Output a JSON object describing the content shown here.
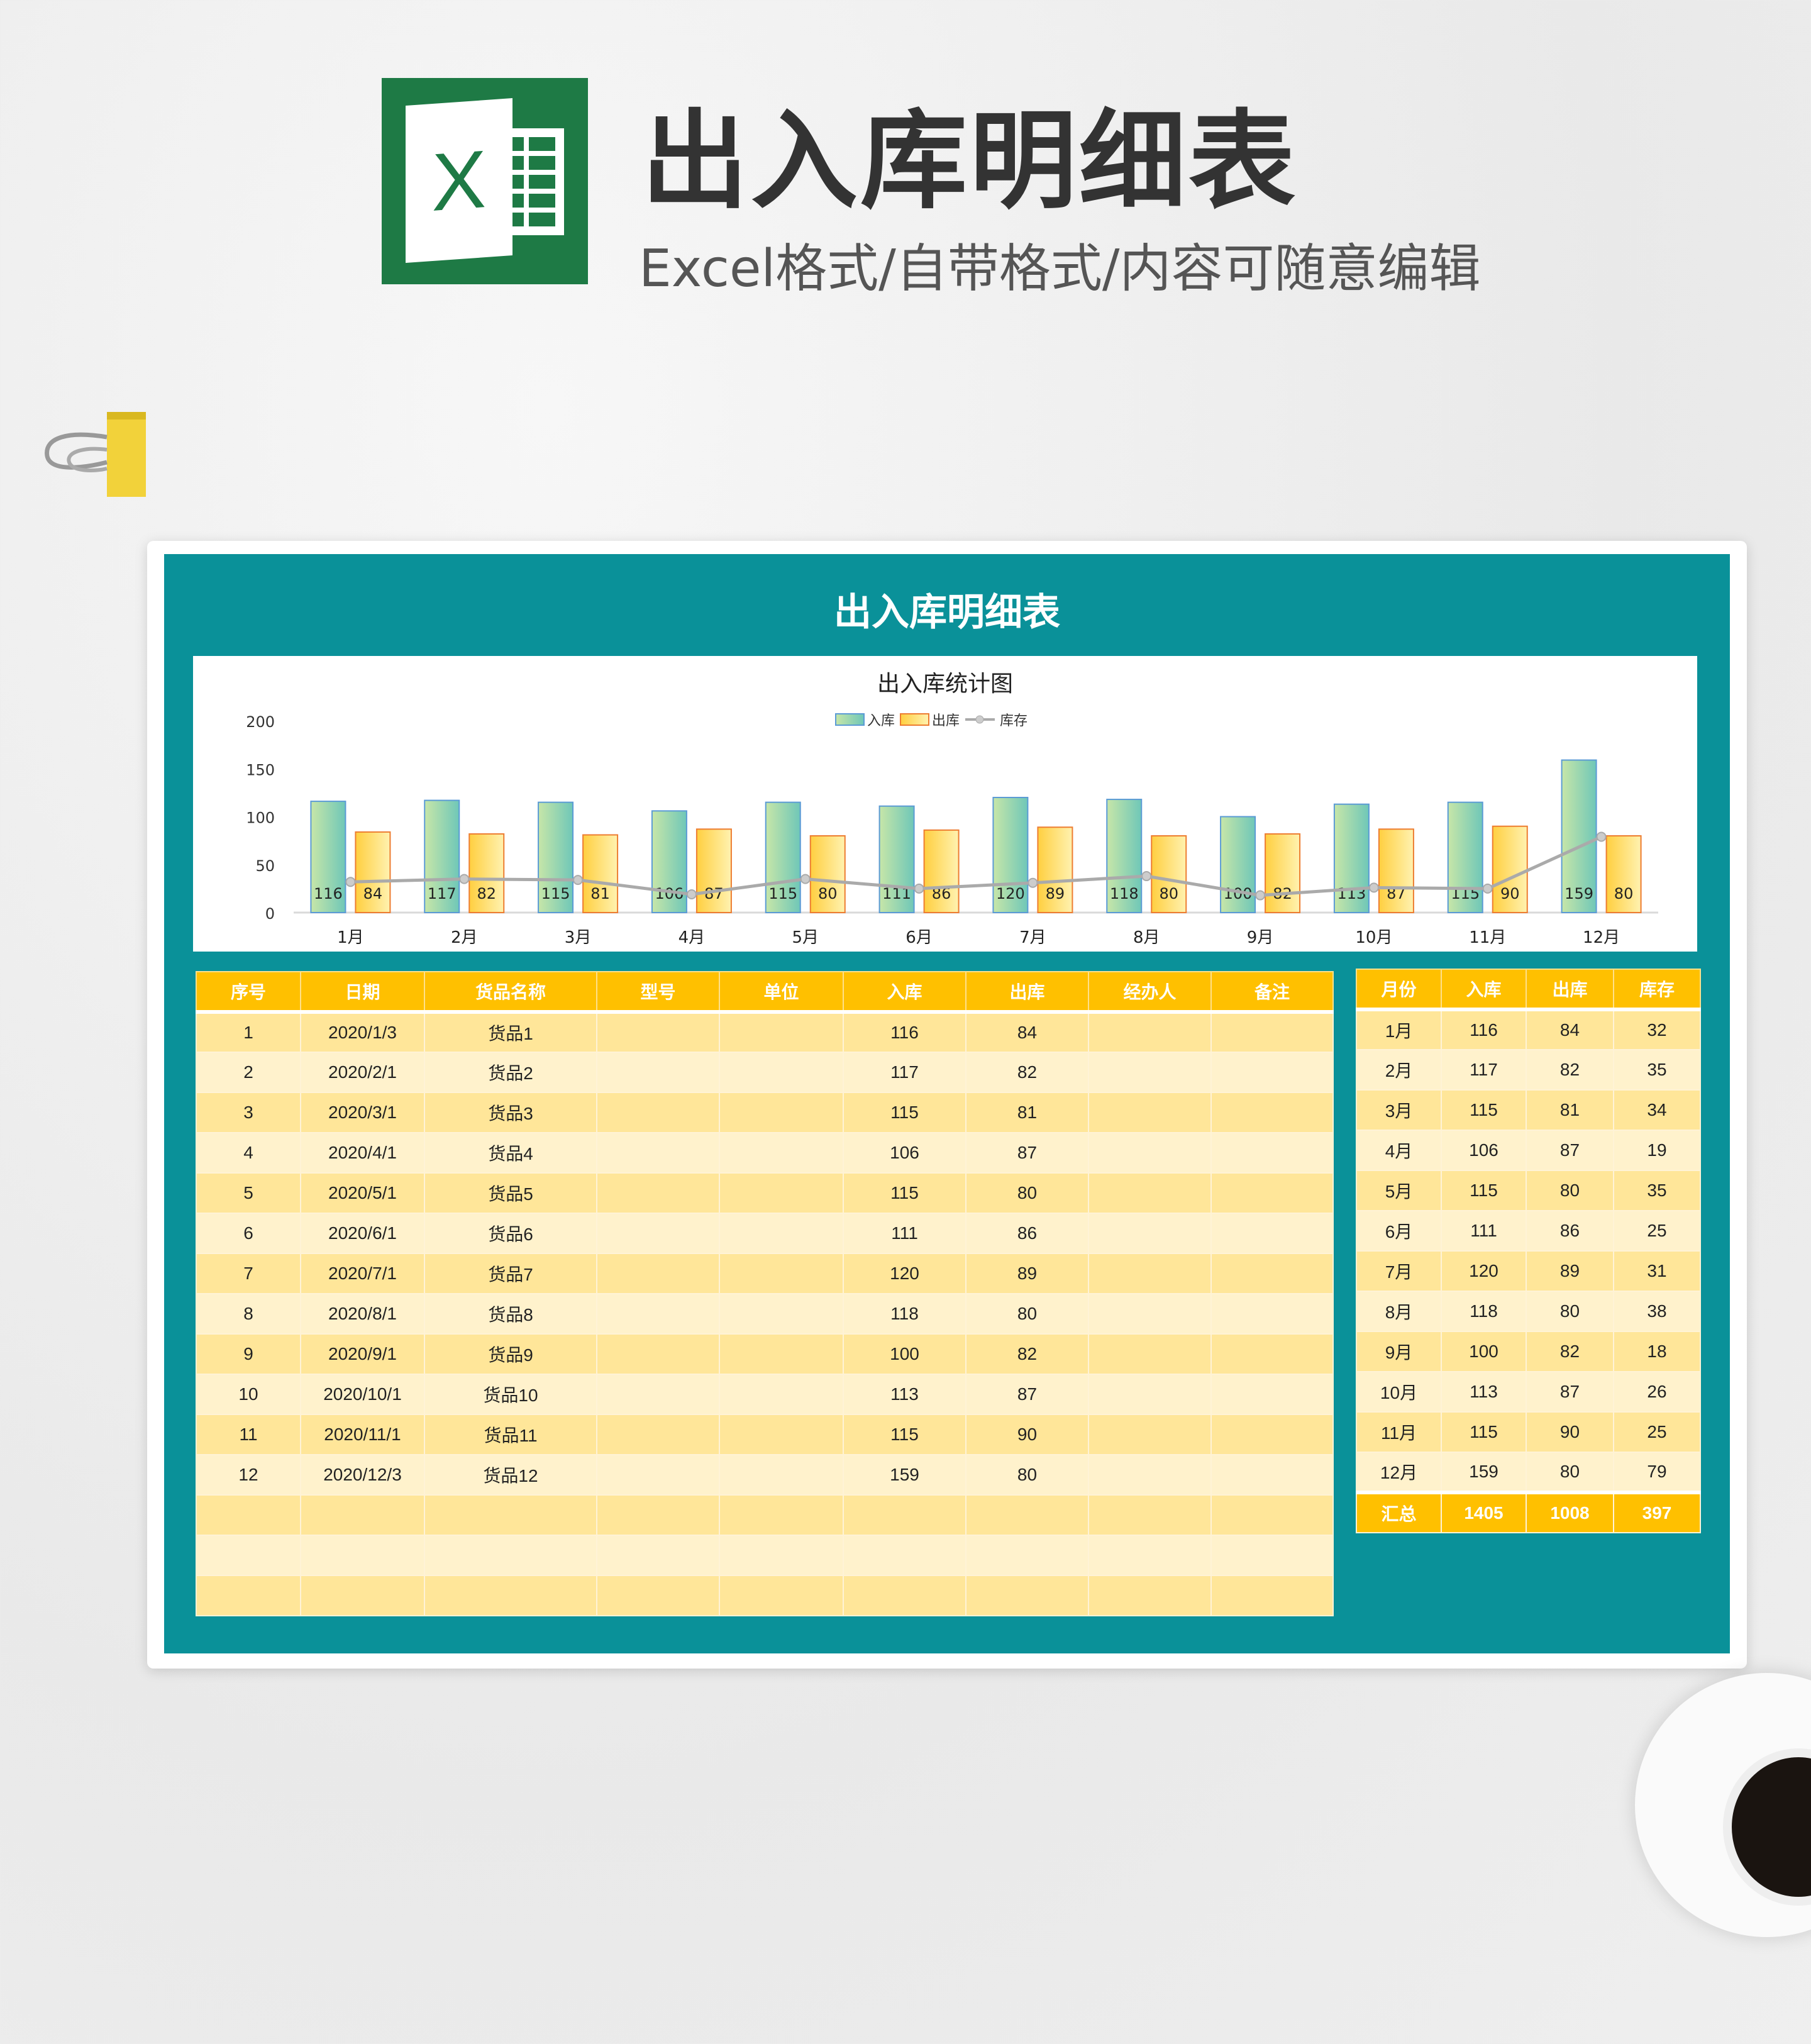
{
  "header": {
    "title": "出入库明细表",
    "subtitle": "Excel格式/自带格式/内容可随意编辑",
    "logo_letter": "X"
  },
  "sheet": {
    "title": "出入库明细表"
  },
  "colors": {
    "teal": "#0a9199",
    "header": "#ffc000",
    "row_odd": "#ffe699",
    "row_even": "#fff2cc",
    "bar_in": "#8fd3b0",
    "bar_out": "#ffd966",
    "line": "#aaaaaa"
  },
  "chart_data": {
    "type": "bar",
    "title": "出入库统计图",
    "categories": [
      "1月",
      "2月",
      "3月",
      "4月",
      "5月",
      "6月",
      "7月",
      "8月",
      "9月",
      "10月",
      "11月",
      "12月"
    ],
    "series": [
      {
        "name": "入库",
        "type": "bar",
        "values": [
          116,
          117,
          115,
          106,
          115,
          111,
          120,
          118,
          100,
          113,
          115,
          159
        ]
      },
      {
        "name": "出库",
        "type": "bar",
        "values": [
          84,
          82,
          81,
          87,
          80,
          86,
          89,
          80,
          82,
          87,
          90,
          80
        ]
      },
      {
        "name": "库存",
        "type": "line",
        "values": [
          32,
          35,
          34,
          19,
          35,
          25,
          31,
          38,
          18,
          26,
          25,
          79
        ]
      }
    ],
    "ylim": [
      0,
      200
    ],
    "yticks": [
      "0",
      "50",
      "100",
      "150",
      "200"
    ],
    "legend": "top",
    "grid": false
  },
  "detail": {
    "headers": [
      "序号",
      "日期",
      "货品名称",
      "型号",
      "单位",
      "入库",
      "出库",
      "经办人",
      "备注"
    ],
    "rows": [
      [
        "1",
        "2020/1/3",
        "货品1",
        "",
        "",
        "116",
        "84",
        "",
        ""
      ],
      [
        "2",
        "2020/2/1",
        "货品2",
        "",
        "",
        "117",
        "82",
        "",
        ""
      ],
      [
        "3",
        "2020/3/1",
        "货品3",
        "",
        "",
        "115",
        "81",
        "",
        ""
      ],
      [
        "4",
        "2020/4/1",
        "货品4",
        "",
        "",
        "106",
        "87",
        "",
        ""
      ],
      [
        "5",
        "2020/5/1",
        "货品5",
        "",
        "",
        "115",
        "80",
        "",
        ""
      ],
      [
        "6",
        "2020/6/1",
        "货品6",
        "",
        "",
        "111",
        "86",
        "",
        ""
      ],
      [
        "7",
        "2020/7/1",
        "货品7",
        "",
        "",
        "120",
        "89",
        "",
        ""
      ],
      [
        "8",
        "2020/8/1",
        "货品8",
        "",
        "",
        "118",
        "80",
        "",
        ""
      ],
      [
        "9",
        "2020/9/1",
        "货品9",
        "",
        "",
        "100",
        "82",
        "",
        ""
      ],
      [
        "10",
        "2020/10/1",
        "货品10",
        "",
        "",
        "113",
        "87",
        "",
        ""
      ],
      [
        "11",
        "2020/11/1",
        "货品11",
        "",
        "",
        "115",
        "90",
        "",
        ""
      ],
      [
        "12",
        "2020/12/3",
        "货品12",
        "",
        "",
        "159",
        "80",
        "",
        ""
      ],
      [
        "",
        "",
        "",
        "",
        "",
        "",
        "",
        "",
        ""
      ],
      [
        "",
        "",
        "",
        "",
        "",
        "",
        "",
        "",
        ""
      ],
      [
        "",
        "",
        "",
        "",
        "",
        "",
        "",
        "",
        ""
      ]
    ]
  },
  "summary": {
    "headers": [
      "月份",
      "入库",
      "出库",
      "库存"
    ],
    "rows": [
      [
        "1月",
        "116",
        "84",
        "32"
      ],
      [
        "2月",
        "117",
        "82",
        "35"
      ],
      [
        "3月",
        "115",
        "81",
        "34"
      ],
      [
        "4月",
        "106",
        "87",
        "19"
      ],
      [
        "5月",
        "115",
        "80",
        "35"
      ],
      [
        "6月",
        "111",
        "86",
        "25"
      ],
      [
        "7月",
        "120",
        "89",
        "31"
      ],
      [
        "8月",
        "118",
        "80",
        "38"
      ],
      [
        "9月",
        "100",
        "82",
        "18"
      ],
      [
        "10月",
        "113",
        "87",
        "26"
      ],
      [
        "11月",
        "115",
        "90",
        "25"
      ],
      [
        "12月",
        "159",
        "80",
        "79"
      ]
    ],
    "total": [
      "汇总",
      "1405",
      "1008",
      "397"
    ]
  }
}
